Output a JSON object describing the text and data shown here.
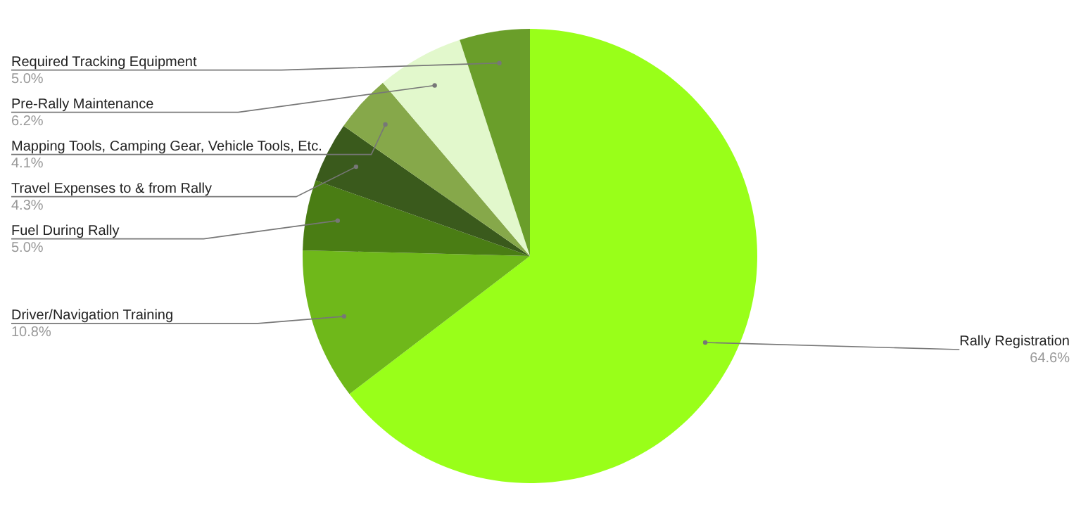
{
  "chart_data": {
    "type": "pie",
    "categories": [
      "Rally Registration",
      "Driver/Navigation Training",
      "Fuel During Rally",
      "Travel Expenses to & from Rally",
      "Mapping Tools, Camping Gear, Vehicle Tools, Etc.",
      "Pre-Rally Maintenance",
      "Required Tracking Equipment"
    ],
    "values": [
      64.6,
      10.8,
      5.0,
      4.3,
      4.1,
      6.2,
      5.0
    ],
    "value_labels": [
      "64.6%",
      "10.8%",
      "5.0%",
      "4.3%",
      "4.1%",
      "6.2%",
      "5.0%"
    ],
    "colors": [
      "#99ff19",
      "#6fb81a",
      "#4a7d14",
      "#3a5a1c",
      "#86a84a",
      "#e2f8cc",
      "#6a9e2a"
    ],
    "legend": false
  }
}
